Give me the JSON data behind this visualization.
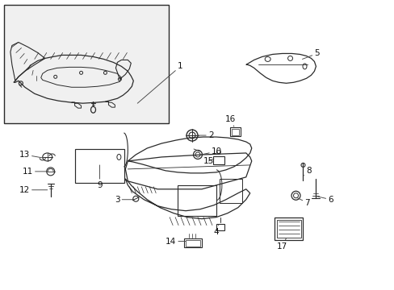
{
  "background_color": "#ffffff",
  "line_color": "#2a2a2a",
  "label_color": "#111111",
  "fig_width": 4.89,
  "fig_height": 3.6,
  "dpi": 100
}
